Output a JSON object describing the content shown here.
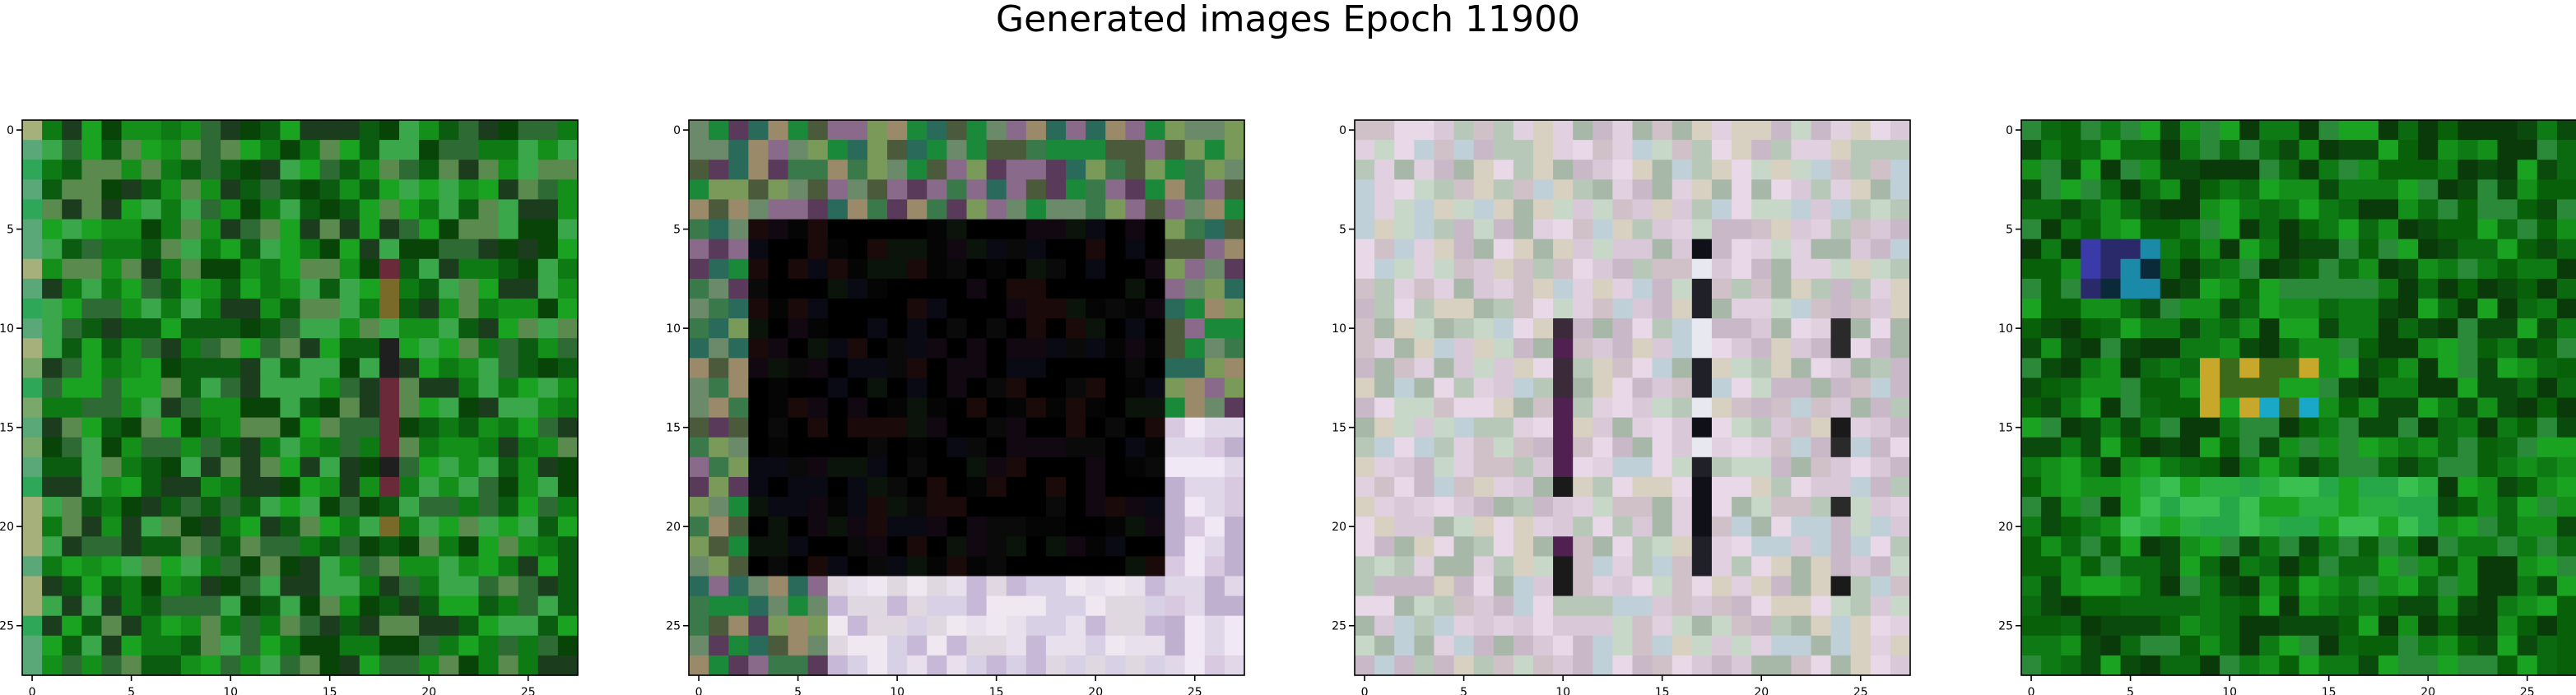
{
  "figure": {
    "title": "Generated images Epoch 11900"
  },
  "chart_data": [
    {
      "type": "heatmap",
      "subtype": "rgb-image",
      "grid_size": [
        28,
        28
      ],
      "xlim": [
        0,
        27
      ],
      "ylim": [
        27,
        0
      ],
      "xticks": [
        0,
        5,
        10,
        15,
        20,
        25
      ],
      "yticks": [
        0,
        5,
        10,
        15,
        20,
        25
      ],
      "palette": [
        "#0b5c10",
        "#0e7a14",
        "#138f1a",
        "#1aa321",
        "#2e6b34",
        "#5a8a4e",
        "#1b3d1e",
        "#084408",
        "#3aa84a"
      ],
      "features": [
        {
          "shape": "vcol",
          "col": 18,
          "from": 7,
          "to": 20,
          "palette": [
            "#1f1f1f",
            "#6a2a3a",
            "#3aa84a",
            "#0b5c10",
            "#7a6a2a"
          ]
        },
        {
          "shape": "vcol",
          "col": 0,
          "from": 0,
          "to": 27,
          "palette": [
            "#7aa86a",
            "#2ea858",
            "#a6b07a",
            "#5aa878"
          ]
        }
      ]
    },
    {
      "type": "heatmap",
      "subtype": "rgb-image",
      "grid_size": [
        28,
        28
      ],
      "xlim": [
        0,
        27
      ],
      "ylim": [
        27,
        0
      ],
      "xticks": [
        0,
        5,
        10,
        15,
        20,
        25
      ],
      "yticks": [
        0,
        5,
        10,
        15,
        20,
        25
      ],
      "palette": [
        "#6a8a6a",
        "#3a7a4a",
        "#8a6a8a",
        "#4a5a3a",
        "#2a6a5a",
        "#7a9a5a",
        "#5a3a5a",
        "#1a8a3a",
        "#9a8a6a"
      ],
      "features": [
        {
          "shape": "rect",
          "rows": [
            5,
            22
          ],
          "cols": [
            3,
            23
          ],
          "palette": [
            "#050505",
            "#0a0a0a",
            "#120812",
            "#0a0a14",
            "#1a0a0a",
            "#0a140a",
            "#000000",
            "#000000",
            "#000000"
          ]
        },
        {
          "shape": "rect",
          "rows": [
            23,
            27
          ],
          "cols": [
            7,
            27
          ],
          "palette": [
            "#e0d8e0",
            "#d8d0e4",
            "#e8e0ec",
            "#c8b8d8",
            "#f0e8f0"
          ]
        },
        {
          "shape": "rect",
          "rows": [
            15,
            27
          ],
          "cols": [
            24,
            27
          ],
          "palette": [
            "#d8c8e0",
            "#e0d8e8",
            "#c0b0d0",
            "#f0e8f4"
          ]
        }
      ]
    },
    {
      "type": "heatmap",
      "subtype": "rgb-image",
      "grid_size": [
        28,
        28
      ],
      "xlim": [
        0,
        27
      ],
      "ylim": [
        27,
        0
      ],
      "xticks": [
        0,
        5,
        10,
        15,
        20,
        25
      ],
      "yticks": [
        0,
        5,
        10,
        15,
        20,
        25
      ],
      "palette": [
        "#d8c8d8",
        "#c8d8c8",
        "#e0d0e0",
        "#b8c8b8",
        "#d0c0c8",
        "#c0d0d8",
        "#e8d8e8",
        "#d8d0c0",
        "#c8b8c8",
        "#a8b8a8"
      ],
      "features": [
        {
          "shape": "vcol",
          "col": 10,
          "from": 10,
          "to": 23,
          "palette": [
            "#1a1a1a",
            "#3a2a3a",
            "#d8c8d8",
            "#502050"
          ]
        },
        {
          "shape": "vcol",
          "col": 24,
          "from": 9,
          "to": 23,
          "palette": [
            "#1a1a1a",
            "#2a2a2a",
            "#d8c8d8",
            "#c8b8c8"
          ]
        },
        {
          "shape": "vcol",
          "col": 17,
          "from": 6,
          "to": 22,
          "palette": [
            "#101018",
            "#e8e8f0",
            "#202028"
          ]
        }
      ]
    },
    {
      "type": "heatmap",
      "subtype": "rgb-image",
      "grid_size": [
        28,
        28
      ],
      "xlim": [
        0,
        27
      ],
      "ylim": [
        27,
        0
      ],
      "xticks": [
        0,
        5,
        10,
        15,
        20,
        25
      ],
      "yticks": [
        0,
        5,
        10,
        15,
        20,
        25
      ],
      "palette": [
        "#0b6a10",
        "#0e7a14",
        "#138f1a",
        "#0a4a0c",
        "#1aa321",
        "#086008",
        "#2a8a3a",
        "#0a3a0a"
      ],
      "features": [
        {
          "shape": "rect",
          "rows": [
            6,
            8
          ],
          "cols": [
            3,
            6
          ],
          "palette": [
            "#3a3aa8",
            "#1a8aa8",
            "#2a2a6a",
            "#0a2a3a"
          ]
        },
        {
          "shape": "rect",
          "rows": [
            12,
            14
          ],
          "cols": [
            9,
            14
          ],
          "palette": [
            "#c8a82a",
            "#1aa8c8",
            "#3a6a1a",
            "#1aa321"
          ]
        },
        {
          "shape": "rect",
          "rows": [
            18,
            20
          ],
          "cols": [
            5,
            20
          ],
          "palette": [
            "#2ab040",
            "#3ac050",
            "#1aa321",
            "#26a848"
          ]
        }
      ]
    }
  ]
}
